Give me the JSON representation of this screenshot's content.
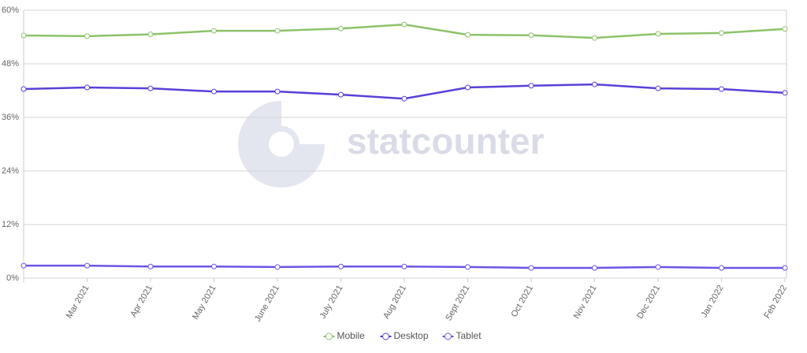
{
  "chart_data": {
    "type": "line",
    "watermark": "statcounter",
    "categories": [
      null,
      "Mar 2021",
      "Apr 2021",
      "May 2021",
      "June 2021",
      "July 2021",
      "Aug 2021",
      "Sept 2021",
      "Oct 2021",
      "Nov 2021",
      "Dec 2021",
      "Jan 2022",
      "Feb 2022"
    ],
    "series": [
      {
        "name": "Mobile",
        "color": "#8cc26a",
        "values": [
          54.35,
          54.2,
          54.6,
          55.4,
          55.4,
          55.9,
          56.8,
          54.5,
          54.4,
          53.8,
          54.7,
          54.9,
          55.8
        ]
      },
      {
        "name": "Desktop",
        "color": "#5b3fd8",
        "values": [
          42.35,
          42.7,
          42.5,
          41.8,
          41.8,
          41.1,
          40.2,
          42.7,
          43.1,
          43.4,
          42.5,
          42.35,
          41.5
        ]
      },
      {
        "name": "Tablet",
        "color": "#6d55e6",
        "values": [
          2.8,
          2.8,
          2.6,
          2.6,
          2.5,
          2.6,
          2.6,
          2.5,
          2.3,
          2.3,
          2.5,
          2.3,
          2.3
        ]
      }
    ],
    "ylim": [
      0,
      60
    ],
    "yticks": [
      {
        "value": 0,
        "label": "0%"
      },
      {
        "value": 12,
        "label": "12%"
      },
      {
        "value": 24,
        "label": "24%"
      },
      {
        "value": 36,
        "label": "36%"
      },
      {
        "value": 48,
        "label": "48%"
      },
      {
        "value": 60,
        "label": "60%"
      }
    ],
    "grid": true,
    "legend": "bottom"
  }
}
